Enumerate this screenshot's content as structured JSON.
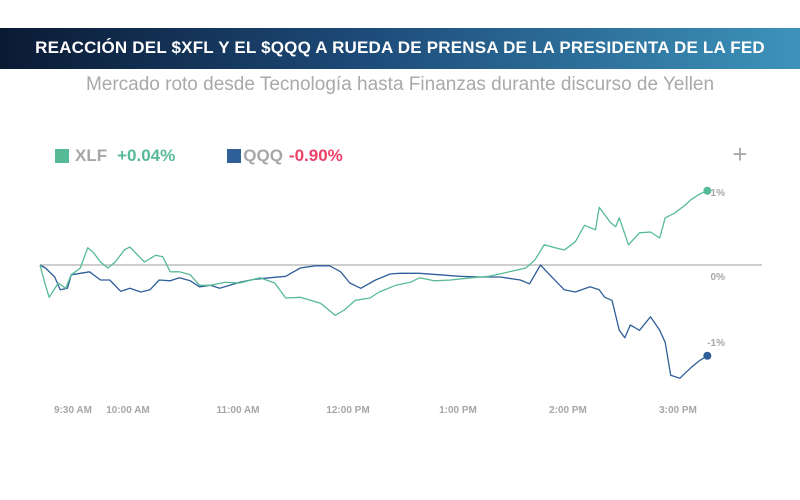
{
  "title": "REACCIÓN DEL $XFL Y EL $QQQ A RUEDA DE PRENSA DE LA PRESIDENTA DE LA FED",
  "subtitle": "Mercado roto desde Tecnología hasta Finanzas durante discurso de Yellen",
  "plus_icon": "plus-icon",
  "legend": [
    {
      "name": "XLF",
      "change": "+0.04%",
      "color": "#57ba96",
      "change_color": "#57ba96"
    },
    {
      "name": "QQQ",
      "change": "-0.90%",
      "color": "#2f5f99",
      "change_color": "#f0406a"
    }
  ],
  "chart_data": {
    "type": "line",
    "title": "",
    "xlabel": "",
    "ylabel": "",
    "ylim": [
      -1.6,
      1.2
    ],
    "y_ticks": [
      {
        "value": 1,
        "label": "1%"
      },
      {
        "value": 0,
        "label": "0%"
      },
      {
        "value": -1,
        "label": "-1%"
      }
    ],
    "x_ticks": [
      {
        "time": "9:30",
        "label": "9:30 AM"
      },
      {
        "time": "10:00",
        "label": "10:00 AM"
      },
      {
        "time": "11:00",
        "label": "11:00 AM"
      },
      {
        "time": "12:00",
        "label": "12:00 PM"
      },
      {
        "time": "13:00",
        "label": "1:00 PM"
      },
      {
        "time": "14:00",
        "label": "2:00 PM"
      },
      {
        "time": "15:00",
        "label": "3:00 PM"
      }
    ],
    "grid": false,
    "zero_line": true,
    "series": [
      {
        "name": "XLF",
        "color": "#57ba96",
        "points": [
          [
            "9:12",
            0
          ],
          [
            "9:15",
            -0.27
          ],
          [
            "9:17",
            -0.43
          ],
          [
            "9:22",
            -0.24
          ],
          [
            "9:26",
            -0.31
          ],
          [
            "9:29",
            -0.13
          ],
          [
            "9:34",
            -0.04
          ],
          [
            "9:38",
            0.23
          ],
          [
            "9:41",
            0.17
          ],
          [
            "9:45",
            0.04
          ],
          [
            "9:49",
            -0.04
          ],
          [
            "9:53",
            0.04
          ],
          [
            "9:58",
            0.2
          ],
          [
            "10:01",
            0.24
          ],
          [
            "10:07",
            0.09
          ],
          [
            "10:09",
            0.04
          ],
          [
            "10:15",
            0.13
          ],
          [
            "10:19",
            0.11
          ],
          [
            "10:23",
            -0.09
          ],
          [
            "10:28",
            -0.09
          ],
          [
            "10:34",
            -0.13
          ],
          [
            "10:39",
            -0.27
          ],
          [
            "10:45",
            -0.27
          ],
          [
            "10:53",
            -0.23
          ],
          [
            "11:01",
            -0.24
          ],
          [
            "11:12",
            -0.17
          ],
          [
            "11:20",
            -0.24
          ],
          [
            "11:26",
            -0.44
          ],
          [
            "11:34",
            -0.43
          ],
          [
            "11:45",
            -0.51
          ],
          [
            "11:53",
            -0.67
          ],
          [
            "11:58",
            -0.6
          ],
          [
            "12:04",
            -0.47
          ],
          [
            "12:12",
            -0.44
          ],
          [
            "12:17",
            -0.36
          ],
          [
            "12:26",
            -0.27
          ],
          [
            "12:34",
            -0.23
          ],
          [
            "12:39",
            -0.17
          ],
          [
            "12:47",
            -0.21
          ],
          [
            "12:56",
            -0.2
          ],
          [
            "13:07",
            -0.17
          ],
          [
            "13:17",
            -0.15
          ],
          [
            "13:28",
            -0.09
          ],
          [
            "13:37",
            -0.04
          ],
          [
            "13:42",
            0.07
          ],
          [
            "13:47",
            0.27
          ],
          [
            "13:53",
            0.23
          ],
          [
            "13:58",
            0.2
          ],
          [
            "14:04",
            0.31
          ],
          [
            "14:09",
            0.53
          ],
          [
            "14:15",
            0.47
          ],
          [
            "14:17",
            0.77
          ],
          [
            "14:23",
            0.57
          ],
          [
            "14:26",
            0.51
          ],
          [
            "14:28",
            0.63
          ],
          [
            "14:33",
            0.27
          ],
          [
            "14:39",
            0.43
          ],
          [
            "14:45",
            0.44
          ],
          [
            "14:50",
            0.36
          ],
          [
            "14:53",
            0.63
          ],
          [
            "14:58",
            0.69
          ],
          [
            "15:04",
            0.8
          ],
          [
            "15:07",
            0.87
          ],
          [
            "15:12",
            0.95
          ],
          [
            "15:16",
            0.99
          ]
        ]
      },
      {
        "name": "QQQ",
        "color": "#2f5f99",
        "points": [
          [
            "9:12",
            0
          ],
          [
            "9:15",
            -0.04
          ],
          [
            "9:20",
            -0.16
          ],
          [
            "9:23",
            -0.33
          ],
          [
            "9:27",
            -0.31
          ],
          [
            "9:29",
            -0.13
          ],
          [
            "9:34",
            -0.11
          ],
          [
            "9:39",
            -0.09
          ],
          [
            "9:45",
            -0.2
          ],
          [
            "9:50",
            -0.2
          ],
          [
            "9:56",
            -0.35
          ],
          [
            "10:01",
            -0.31
          ],
          [
            "10:07",
            -0.36
          ],
          [
            "10:12",
            -0.33
          ],
          [
            "10:17",
            -0.2
          ],
          [
            "10:23",
            -0.21
          ],
          [
            "10:28",
            -0.17
          ],
          [
            "10:34",
            -0.21
          ],
          [
            "10:39",
            -0.29
          ],
          [
            "10:45",
            -0.27
          ],
          [
            "10:50",
            -0.31
          ],
          [
            "11:01",
            -0.23
          ],
          [
            "11:09",
            -0.19
          ],
          [
            "11:17",
            -0.17
          ],
          [
            "11:26",
            -0.15
          ],
          [
            "11:34",
            -0.04
          ],
          [
            "11:42",
            -0.01
          ],
          [
            "11:50",
            -0.01
          ],
          [
            "11:56",
            -0.09
          ],
          [
            "12:01",
            -0.24
          ],
          [
            "12:07",
            -0.31
          ],
          [
            "12:15",
            -0.2
          ],
          [
            "12:23",
            -0.12
          ],
          [
            "12:28",
            -0.11
          ],
          [
            "12:39",
            -0.11
          ],
          [
            "12:50",
            -0.13
          ],
          [
            "13:01",
            -0.15
          ],
          [
            "13:12",
            -0.16
          ],
          [
            "13:23",
            -0.16
          ],
          [
            "13:34",
            -0.2
          ],
          [
            "13:39",
            -0.25
          ],
          [
            "13:45",
            0
          ],
          [
            "13:50",
            -0.13
          ],
          [
            "13:58",
            -0.33
          ],
          [
            "14:04",
            -0.36
          ],
          [
            "14:12",
            -0.29
          ],
          [
            "14:17",
            -0.33
          ],
          [
            "14:20",
            -0.43
          ],
          [
            "14:24",
            -0.47
          ],
          [
            "14:28",
            -0.87
          ],
          [
            "14:31",
            -0.97
          ],
          [
            "14:34",
            -0.8
          ],
          [
            "14:39",
            -0.87
          ],
          [
            "14:45",
            -0.69
          ],
          [
            "14:50",
            -0.87
          ],
          [
            "14:53",
            -1.03
          ],
          [
            "14:56",
            -1.47
          ],
          [
            "15:01",
            -1.51
          ],
          [
            "15:07",
            -1.37
          ],
          [
            "15:12",
            -1.27
          ],
          [
            "15:16",
            -1.21
          ]
        ]
      }
    ]
  }
}
